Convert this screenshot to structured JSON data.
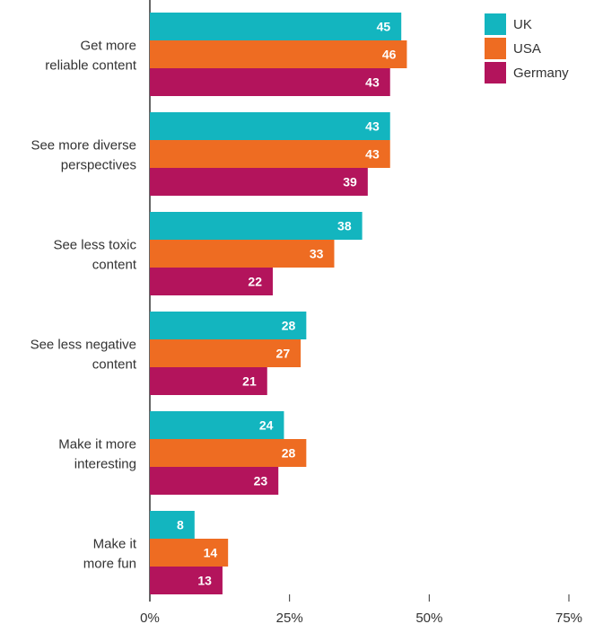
{
  "chart_data": {
    "type": "bar",
    "orientation": "horizontal",
    "categories": [
      [
        "Get more",
        "reliable content"
      ],
      [
        "See more diverse",
        "perspectives"
      ],
      [
        "See less toxic",
        "content"
      ],
      [
        "See less negative",
        "content"
      ],
      [
        "Make it more",
        "interesting"
      ],
      [
        "Make it",
        "more fun"
      ]
    ],
    "series": [
      {
        "name": "UK",
        "color": "#13b5bf",
        "values": [
          45,
          43,
          38,
          28,
          24,
          8
        ]
      },
      {
        "name": "USA",
        "color": "#ee6c22",
        "values": [
          46,
          43,
          33,
          27,
          28,
          14
        ]
      },
      {
        "name": "Germany",
        "color": "#b3145c",
        "values": [
          43,
          39,
          22,
          21,
          23,
          13
        ]
      }
    ],
    "xlim": [
      0,
      75
    ],
    "xticks": [
      0,
      25,
      50,
      75
    ],
    "xtick_labels": [
      "0%",
      "25%",
      "50%",
      "75%"
    ],
    "grid": false,
    "legend_position": "top-right",
    "title": "",
    "xlabel": "",
    "ylabel": ""
  }
}
